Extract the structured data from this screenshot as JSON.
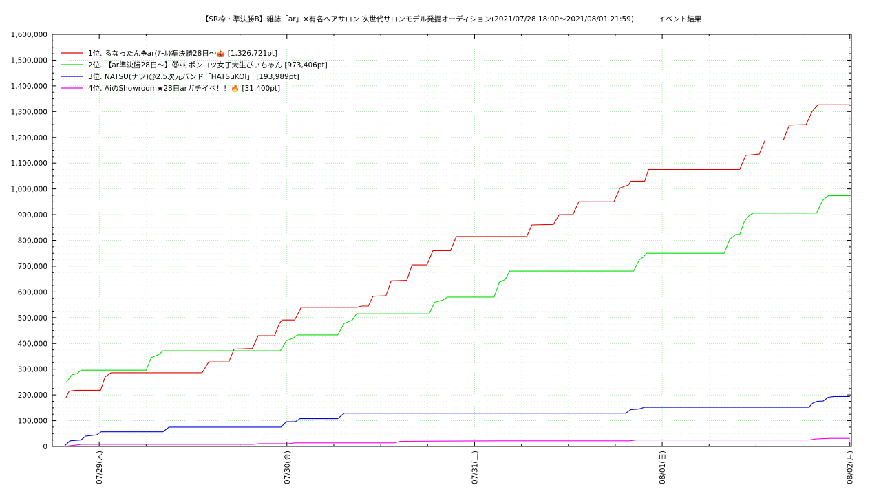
{
  "chart_data": {
    "type": "line",
    "title": "【SR枠・準決勝B】雑誌「ar」×有名ヘアサロン 次世代サロンモデル発掘オーディション(2021/07/28 18:00～2021/08/01 21:59)",
    "subtitle": "イベント結果",
    "xlabel": "",
    "ylabel": "",
    "x_range": [
      "2021-07-28 18:00",
      "2021-08-02 00:12"
    ],
    "ylim": [
      0,
      1600000
    ],
    "y_ticks": [
      "0",
      "100,000",
      "200,000",
      "300,000",
      "400,000",
      "500,000",
      "600,000",
      "700,000",
      "800,000",
      "900,000",
      "1,000,000",
      "1,100,000",
      "1,200,000",
      "1,300,000",
      "1,400,000",
      "1,500,000",
      "1,600,000"
    ],
    "x_ticks": [
      {
        "t": "2021-07-29 00:00",
        "label": "07/29(木)"
      },
      {
        "t": "2021-07-30 00:00",
        "label": "07/30(金)"
      },
      {
        "t": "2021-07-31 00:00",
        "label": "07/31(土)"
      },
      {
        "t": "2021-08-01 00:00",
        "label": "08/01(日)"
      },
      {
        "t": "2021-08-02 00:00",
        "label": "08/02(月)"
      }
    ],
    "grid": true,
    "legend_position": "top-left",
    "series": [
      {
        "name": "1位. るなったん☘ar(ｱｰﾙ)準決勝28日～🎪 [1,326,721pt]",
        "color": "#e00000",
        "points": [
          [
            "2021-07-28 19:45",
            190000
          ],
          [
            "2021-07-28 20:10",
            215000
          ],
          [
            "2021-07-28 21:00",
            218000
          ],
          [
            "2021-07-29 00:10",
            218000
          ],
          [
            "2021-07-29 00:45",
            270000
          ],
          [
            "2021-07-29 01:30",
            286000
          ],
          [
            "2021-07-29 06:00",
            286000
          ],
          [
            "2021-07-29 13:10",
            286000
          ],
          [
            "2021-07-29 14:00",
            328000
          ],
          [
            "2021-07-29 16:35",
            328000
          ],
          [
            "2021-07-29 17:15",
            378000
          ],
          [
            "2021-07-29 19:35",
            380000
          ],
          [
            "2021-07-29 20:20",
            430000
          ],
          [
            "2021-07-29 22:25",
            430000
          ],
          [
            "2021-07-29 23:05",
            480000
          ],
          [
            "2021-07-29 23:25",
            491000
          ],
          [
            "2021-07-30 01:00",
            491000
          ],
          [
            "2021-07-30 01:50",
            540000
          ],
          [
            "2021-07-30 09:00",
            540000
          ],
          [
            "2021-07-30 09:30",
            545000
          ],
          [
            "2021-07-30 10:25",
            545000
          ],
          [
            "2021-07-30 11:00",
            583000
          ],
          [
            "2021-07-30 12:40",
            585000
          ],
          [
            "2021-07-30 13:20",
            643000
          ],
          [
            "2021-07-30 15:20",
            645000
          ],
          [
            "2021-07-30 16:00",
            705000
          ],
          [
            "2021-07-30 17:55",
            705000
          ],
          [
            "2021-07-30 18:40",
            760000
          ],
          [
            "2021-07-30 20:55",
            760000
          ],
          [
            "2021-07-30 21:40",
            815000
          ],
          [
            "2021-07-31 06:40",
            815000
          ],
          [
            "2021-07-31 07:20",
            860000
          ],
          [
            "2021-07-31 10:05",
            862000
          ],
          [
            "2021-07-31 10:50",
            900000
          ],
          [
            "2021-07-31 12:35",
            900000
          ],
          [
            "2021-07-31 13:20",
            950000
          ],
          [
            "2021-07-31 17:50",
            950000
          ],
          [
            "2021-07-31 18:35",
            1003000
          ],
          [
            "2021-07-31 19:40",
            1015000
          ],
          [
            "2021-07-31 20:00",
            1030000
          ],
          [
            "2021-07-31 21:45",
            1030000
          ],
          [
            "2021-07-31 22:15",
            1075000
          ],
          [
            "2021-08-01 09:55",
            1075000
          ],
          [
            "2021-08-01 10:40",
            1130000
          ],
          [
            "2021-08-01 12:25",
            1135000
          ],
          [
            "2021-08-01 13:10",
            1190000
          ],
          [
            "2021-08-01 15:30",
            1190000
          ],
          [
            "2021-08-01 16:15",
            1248000
          ],
          [
            "2021-08-01 18:25",
            1250000
          ],
          [
            "2021-08-01 19:10",
            1300000
          ],
          [
            "2021-08-01 19:55",
            1326721
          ],
          [
            "2021-08-02 00:00",
            1326721
          ]
        ]
      },
      {
        "name": "2位. 【ar準決勝28日～】😈👀ポンコツ女子大生ぴぃちゃん [973,406pt]",
        "color": "#00dd00",
        "points": [
          [
            "2021-07-28 19:45",
            248000
          ],
          [
            "2021-07-28 20:30",
            278000
          ],
          [
            "2021-07-28 21:10",
            283000
          ],
          [
            "2021-07-28 21:40",
            296000
          ],
          [
            "2021-07-29 06:00",
            296000
          ],
          [
            "2021-07-29 06:40",
            345000
          ],
          [
            "2021-07-29 07:35",
            356000
          ],
          [
            "2021-07-29 08:10",
            371000
          ],
          [
            "2021-07-29 19:35",
            371000
          ],
          [
            "2021-07-29 23:10",
            371000
          ],
          [
            "2021-07-29 23:55",
            410000
          ],
          [
            "2021-07-30 00:45",
            420000
          ],
          [
            "2021-07-30 01:20",
            433000
          ],
          [
            "2021-07-30 06:30",
            433000
          ],
          [
            "2021-07-30 07:20",
            478000
          ],
          [
            "2021-07-30 08:20",
            490000
          ],
          [
            "2021-07-30 08:55",
            515000
          ],
          [
            "2021-07-30 18:10",
            515000
          ],
          [
            "2021-07-30 18:55",
            560000
          ],
          [
            "2021-07-30 19:55",
            568000
          ],
          [
            "2021-07-30 20:30",
            580000
          ],
          [
            "2021-07-31 02:30",
            580000
          ],
          [
            "2021-07-31 03:10",
            637000
          ],
          [
            "2021-07-31 03:55",
            648000
          ],
          [
            "2021-07-31 04:30",
            681000
          ],
          [
            "2021-07-31 20:20",
            681000
          ],
          [
            "2021-07-31 21:05",
            725000
          ],
          [
            "2021-07-31 21:35",
            735000
          ],
          [
            "2021-07-31 22:00",
            750000
          ],
          [
            "2021-08-01 07:55",
            750000
          ],
          [
            "2021-08-01 08:40",
            805000
          ],
          [
            "2021-08-01 09:25",
            823000
          ],
          [
            "2021-08-01 09:55",
            823000
          ],
          [
            "2021-08-01 10:30",
            873000
          ],
          [
            "2021-08-01 11:10",
            898000
          ],
          [
            "2021-08-01 11:40",
            906000
          ],
          [
            "2021-08-01 19:45",
            906000
          ],
          [
            "2021-08-01 20:30",
            955000
          ],
          [
            "2021-08-01 21:15",
            973406
          ],
          [
            "2021-08-02 00:00",
            973406
          ]
        ]
      },
      {
        "name": "3位. NATSU(ナツ)@2.5次元バンド「HATSuKOI」 [193,989pt]",
        "color": "#0000dd",
        "points": [
          [
            "2021-07-28 19:30",
            0
          ],
          [
            "2021-07-28 20:15",
            22000
          ],
          [
            "2021-07-28 21:40",
            25000
          ],
          [
            "2021-07-28 22:15",
            40000
          ],
          [
            "2021-07-28 23:40",
            45000
          ],
          [
            "2021-07-29 00:15",
            57000
          ],
          [
            "2021-07-29 08:10",
            57000
          ],
          [
            "2021-07-29 08:55",
            75000
          ],
          [
            "2021-07-29 23:15",
            75000
          ],
          [
            "2021-07-29 23:55",
            96000
          ],
          [
            "2021-07-30 01:05",
            96000
          ],
          [
            "2021-07-30 01:40",
            108000
          ],
          [
            "2021-07-30 06:30",
            108000
          ],
          [
            "2021-07-30 07:20",
            129000
          ],
          [
            "2021-07-31 19:20",
            129000
          ],
          [
            "2021-07-31 20:00",
            143000
          ],
          [
            "2021-07-31 21:00",
            145000
          ],
          [
            "2021-07-31 21:45",
            152000
          ],
          [
            "2021-08-01 18:45",
            152000
          ],
          [
            "2021-08-01 19:15",
            168000
          ],
          [
            "2021-08-01 19:50",
            175000
          ],
          [
            "2021-08-01 20:35",
            176000
          ],
          [
            "2021-08-01 21:15",
            191000
          ],
          [
            "2021-08-01 21:59",
            193989
          ],
          [
            "2021-08-02 00:00",
            193989
          ]
        ]
      },
      {
        "name": "4位. AiのShowroom★28日arガチイベ！！🔥 [31,400pt]",
        "color": "#ee00ee",
        "points": [
          [
            "2021-07-28 19:30",
            0
          ],
          [
            "2021-07-28 21:00",
            5000
          ],
          [
            "2021-07-28 21:40",
            8000
          ],
          [
            "2021-07-29 19:40",
            8000
          ],
          [
            "2021-07-29 20:30",
            11000
          ],
          [
            "2021-07-30 00:20",
            11000
          ],
          [
            "2021-07-30 00:55",
            14000
          ],
          [
            "2021-07-30 13:45",
            14000
          ],
          [
            "2021-07-30 14:30",
            20000
          ],
          [
            "2021-07-31 02:50",
            22000
          ],
          [
            "2021-07-31 19:50",
            22000
          ],
          [
            "2021-07-31 20:40",
            25000
          ],
          [
            "2021-08-01 18:50",
            25000
          ],
          [
            "2021-08-01 19:40",
            29000
          ],
          [
            "2021-08-01 21:30",
            31400
          ],
          [
            "2021-08-02 00:00",
            31400
          ]
        ]
      }
    ]
  }
}
